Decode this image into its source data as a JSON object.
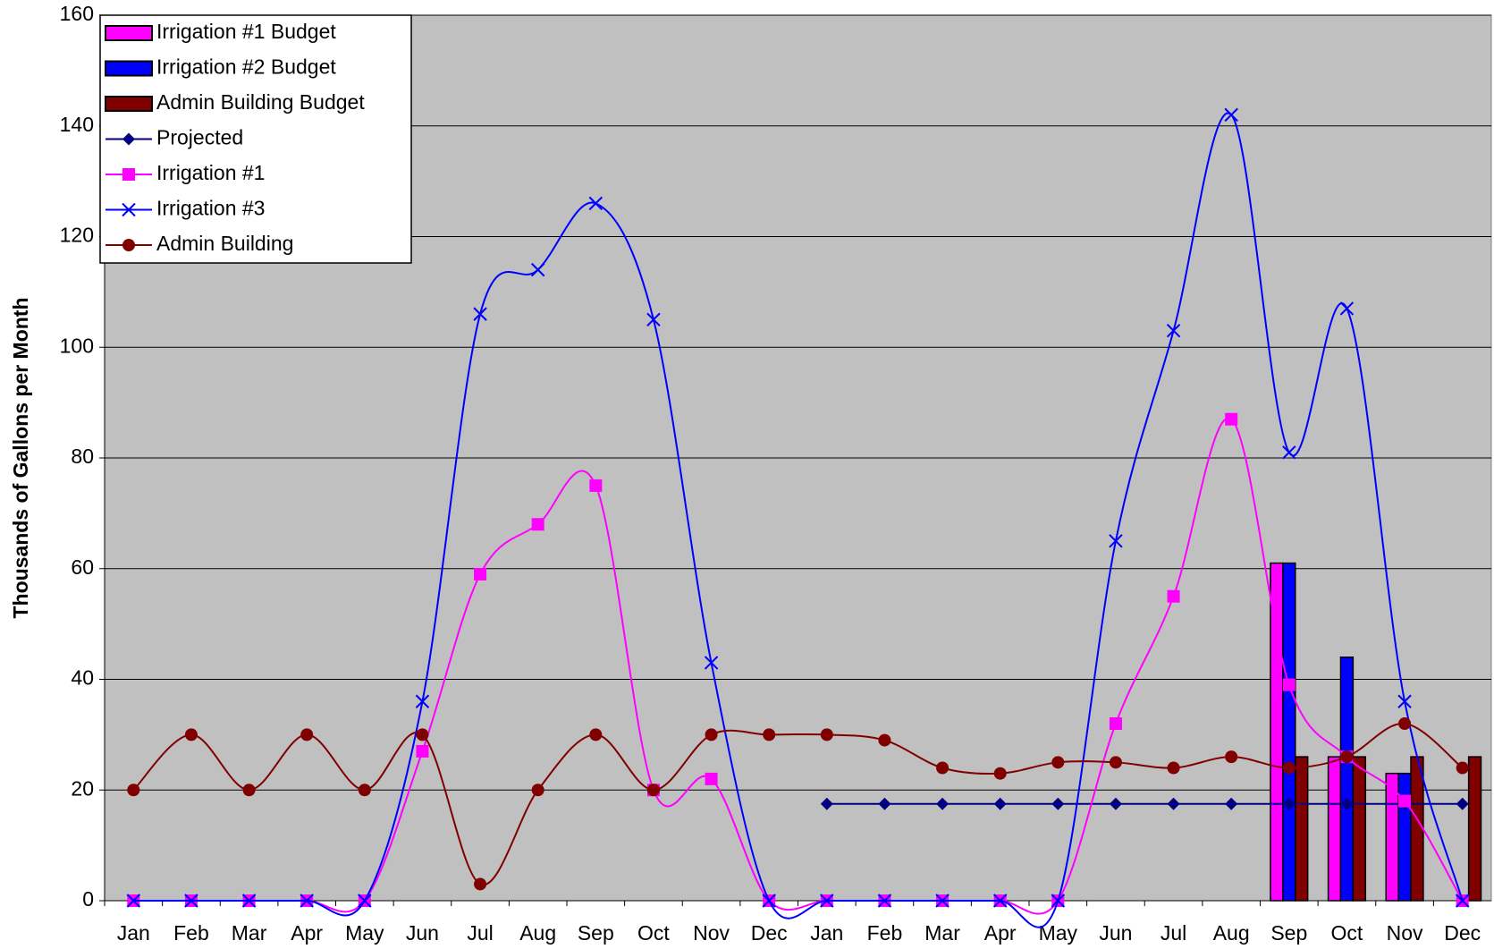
{
  "chart_data": {
    "type": "combo",
    "ylabel": "Thousands of Gallons per Month",
    "categories": [
      "Jan",
      "Feb",
      "Mar",
      "Apr",
      "May",
      "Jun",
      "Jul",
      "Aug",
      "Sep",
      "Oct",
      "Nov",
      "Dec",
      "Jan",
      "Feb",
      "Mar",
      "Apr",
      "May",
      "Jun",
      "Jul",
      "Aug",
      "Sep",
      "Oct",
      "Nov",
      "Dec"
    ],
    "ylim": [
      0,
      160
    ],
    "yticks": [
      0,
      20,
      40,
      60,
      80,
      100,
      120,
      140,
      160
    ],
    "grid": true,
    "legend": "top-left",
    "series": [
      {
        "name": "Irrigation #1 Budget",
        "type": "bar",
        "color": "#ff00ff",
        "values": [
          null,
          null,
          null,
          null,
          null,
          null,
          null,
          null,
          null,
          null,
          null,
          null,
          null,
          null,
          null,
          null,
          null,
          null,
          null,
          null,
          61,
          26,
          23,
          null
        ]
      },
      {
        "name": "Irrigation #2 Budget",
        "type": "bar",
        "color": "#0000ff",
        "values": [
          null,
          null,
          null,
          null,
          null,
          null,
          null,
          null,
          null,
          null,
          null,
          null,
          null,
          null,
          null,
          null,
          null,
          null,
          null,
          null,
          61,
          44,
          23,
          null
        ]
      },
      {
        "name": "Admin Building Budget",
        "type": "bar",
        "color": "#800000",
        "values": [
          null,
          null,
          null,
          null,
          null,
          null,
          null,
          null,
          null,
          null,
          null,
          null,
          null,
          null,
          null,
          null,
          null,
          null,
          null,
          null,
          26,
          26,
          26,
          26
        ]
      },
      {
        "name": "Projected",
        "type": "line",
        "marker": "diamond",
        "color": "#000080",
        "values": [
          null,
          null,
          null,
          null,
          null,
          null,
          null,
          null,
          null,
          null,
          null,
          null,
          17.5,
          17.5,
          17.5,
          17.5,
          17.5,
          17.5,
          17.5,
          17.5,
          17.5,
          17.5,
          17.5,
          17.5
        ]
      },
      {
        "name": "Irrigation #1",
        "type": "line",
        "marker": "square",
        "color": "#ff00ff",
        "values": [
          0,
          0,
          0,
          0,
          0,
          27,
          59,
          68,
          75,
          20,
          22,
          0,
          0,
          0,
          0,
          0,
          0,
          32,
          55,
          87,
          39,
          26,
          18,
          0
        ]
      },
      {
        "name": "Irrigation #3",
        "type": "line",
        "marker": "x",
        "color": "#0000ff",
        "values": [
          0,
          0,
          0,
          0,
          0,
          36,
          106,
          114,
          126,
          105,
          43,
          0,
          0,
          0,
          0,
          0,
          0,
          65,
          103,
          142,
          81,
          107,
          36,
          0
        ]
      },
      {
        "name": "Admin Building",
        "type": "line",
        "marker": "circle",
        "color": "#800000",
        "values": [
          20,
          30,
          20,
          30,
          20,
          30,
          3,
          20,
          30,
          20,
          30,
          30,
          30,
          29,
          24,
          23,
          25,
          25,
          24,
          26,
          24,
          26,
          32,
          24
        ]
      }
    ]
  }
}
